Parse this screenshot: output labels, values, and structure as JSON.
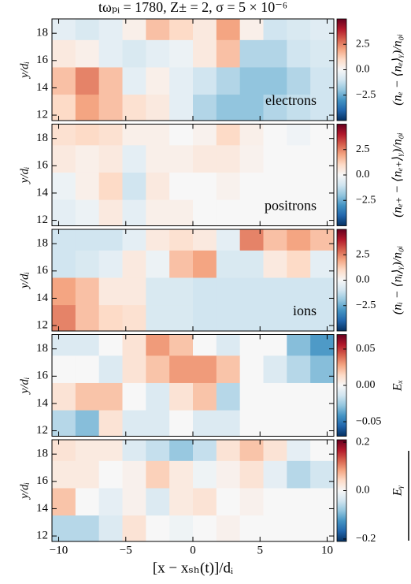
{
  "chart_data": [
    {
      "type": "heatmap",
      "title": "tωₚᵢ = 1780, Z± = 2, σ = 5 × 10⁻⁶",
      "ylabel": "y/dᵢ",
      "annotation": "electrons",
      "colorbar_label": "(nₑ − ⟨nₑ⟩ᵧ)/n₀ᵢ",
      "colormap": [
        "#053061",
        "#2166ac",
        "#4393c3",
        "#92c5de",
        "#d1e5f0",
        "#f7f7f7",
        "#fddbc7",
        "#f4a582",
        "#d6604d",
        "#b2182b",
        "#67001f"
      ],
      "x": [
        -9.625,
        -7.875,
        -6.125,
        -4.375,
        -2.625,
        -0.875,
        0.875,
        2.625,
        4.375,
        6.125,
        7.875,
        9.625
      ],
      "y": [
        18.5,
        16.5,
        14.5,
        12.5
      ],
      "z": [
        [
          -0.5,
          -0.8,
          -0.5,
          0.3,
          1.5,
          1.0,
          0.5,
          2.0,
          0.3,
          -1.0,
          -0.8,
          -0.6
        ],
        [
          0.5,
          0.3,
          -0.5,
          -0.8,
          -0.5,
          -0.3,
          0.5,
          1.5,
          -1.5,
          -1.5,
          -1.0,
          -0.8
        ],
        [
          1.5,
          2.5,
          1.5,
          -0.5,
          0.3,
          -0.5,
          -1.0,
          -1.5,
          -2.0,
          -2.0,
          -1.5,
          -1.0
        ],
        [
          1.0,
          2.0,
          1.5,
          0.8,
          0.5,
          -0.5,
          -1.5,
          -2.0,
          -2.0,
          -1.5,
          -1.2,
          -1.0
        ]
      ],
      "xlim": [
        -10.5,
        10.5
      ],
      "xticks": [
        -10,
        -5,
        0,
        5,
        10
      ],
      "ylim": [
        11.6,
        19.05
      ],
      "yticks": [
        12,
        14,
        16,
        18
      ],
      "clim": [
        -5,
        5
      ],
      "cticks": [
        {
          "value": 2.5,
          "label": "2.5"
        },
        {
          "value": 0,
          "label": "0.0"
        },
        {
          "value": -2.5,
          "label": "−2.5"
        }
      ]
    },
    {
      "type": "heatmap",
      "ylabel": "y/dᵢ",
      "annotation": "positrons",
      "colorbar_label": "(nₑ₊ − ⟨nₑ₊⟩ᵧ)/n₀ᵢ",
      "colormap": [
        "#053061",
        "#2166ac",
        "#4393c3",
        "#92c5de",
        "#d1e5f0",
        "#f7f7f7",
        "#fddbc7",
        "#f4a582",
        "#d6604d",
        "#b2182b",
        "#67001f"
      ],
      "x": [
        -9.625,
        -7.875,
        -6.125,
        -4.375,
        -2.625,
        -0.875,
        0.875,
        2.625,
        4.375,
        6.125,
        7.875,
        9.625
      ],
      "y": [
        18.5,
        16.5,
        14.5,
        12.5
      ],
      "z": [
        [
          0.8,
          1.0,
          0.8,
          0.3,
          0.3,
          0.0,
          0.2,
          1.0,
          0.3,
          0.0,
          -0.2,
          0.0
        ],
        [
          0.5,
          0.3,
          0.5,
          -0.5,
          0.3,
          0.3,
          0.5,
          0.5,
          0.2,
          0.0,
          0.0,
          0.0
        ],
        [
          -0.3,
          0.3,
          1.0,
          -1.0,
          0.5,
          0.0,
          0.0,
          0.2,
          0.0,
          0.0,
          0.0,
          0.0
        ],
        [
          -0.5,
          -0.3,
          0.5,
          -0.5,
          0.3,
          0.3,
          0.0,
          0.0,
          0.0,
          0.0,
          0.0,
          0.0
        ]
      ],
      "xlim": [
        -10.5,
        10.5
      ],
      "xticks": [
        -10,
        -5,
        0,
        5,
        10
      ],
      "ylim": [
        11.6,
        19.05
      ],
      "yticks": [
        12,
        14,
        16,
        18
      ],
      "clim": [
        -5,
        5
      ],
      "cticks": [
        {
          "value": 2.5,
          "label": "2.5"
        },
        {
          "value": 0,
          "label": "0.0"
        },
        {
          "value": -2.5,
          "label": "−2.5"
        }
      ]
    },
    {
      "type": "heatmap",
      "ylabel": "y/dᵢ",
      "annotation": "ions",
      "colorbar_label": "(nᵢ − ⟨nᵢ⟩ᵧ)/n₀ᵢ",
      "colormap": [
        "#053061",
        "#2166ac",
        "#4393c3",
        "#92c5de",
        "#d1e5f0",
        "#f7f7f7",
        "#fddbc7",
        "#f4a582",
        "#d6604d",
        "#b2182b",
        "#67001f"
      ],
      "x": [
        -9.625,
        -7.875,
        -6.125,
        -4.375,
        -2.625,
        -0.875,
        0.875,
        2.625,
        4.375,
        6.125,
        7.875,
        9.625
      ],
      "y": [
        18.5,
        16.5,
        14.5,
        12.5
      ],
      "z": [
        [
          -1.0,
          -1.0,
          -1.0,
          -0.5,
          0.5,
          0.8,
          0.5,
          -0.5,
          2.5,
          1.5,
          2.0,
          1.5
        ],
        [
          -1.0,
          -0.8,
          -0.5,
          0.5,
          -0.3,
          1.5,
          2.0,
          -0.8,
          -0.8,
          0.5,
          1.0,
          -0.5
        ],
        [
          2.0,
          1.5,
          0.5,
          0.5,
          -0.8,
          -0.8,
          -1.0,
          -1.0,
          -1.0,
          -1.0,
          -1.0,
          -1.0
        ],
        [
          2.5,
          1.5,
          1.0,
          0.8,
          -0.8,
          -0.8,
          -1.0,
          -1.0,
          -1.0,
          -1.0,
          -1.0,
          -1.0
        ]
      ],
      "xlim": [
        -10.5,
        10.5
      ],
      "xticks": [
        -10,
        -5,
        0,
        5,
        10
      ],
      "ylim": [
        11.6,
        19.05
      ],
      "yticks": [
        12,
        14,
        16,
        18
      ],
      "clim": [
        -5,
        5
      ],
      "cticks": [
        {
          "value": 2.5,
          "label": "2.5"
        },
        {
          "value": 0,
          "label": "0.0"
        },
        {
          "value": -2.5,
          "label": "−2.5"
        }
      ]
    },
    {
      "type": "heatmap",
      "ylabel": "y/dᵢ",
      "colorbar_label": "Eₓ",
      "colormap": [
        "#053061",
        "#2166ac",
        "#4393c3",
        "#92c5de",
        "#d1e5f0",
        "#f7f7f7",
        "#fddbc7",
        "#f4a582",
        "#d6604d",
        "#b2182b",
        "#67001f"
      ],
      "x": [
        -9.625,
        -7.875,
        -6.125,
        -4.375,
        -2.625,
        -0.875,
        0.875,
        2.625,
        4.375,
        6.125,
        7.875,
        9.625
      ],
      "y": [
        18.5,
        16.5,
        14.5,
        12.5
      ],
      "z": [
        [
          -0.01,
          -0.01,
          0.0,
          0.01,
          0.03,
          0.02,
          0.0,
          -0.01,
          0.0,
          0.0,
          -0.03,
          -0.04
        ],
        [
          0.0,
          0.0,
          -0.01,
          0.01,
          0.02,
          0.03,
          0.03,
          0.02,
          0.0,
          -0.01,
          -0.02,
          -0.03
        ],
        [
          0.01,
          0.02,
          0.02,
          0.0,
          -0.01,
          0.01,
          0.02,
          -0.02,
          0.0,
          0.0,
          0.0,
          0.0
        ],
        [
          -0.02,
          -0.03,
          0.01,
          -0.01,
          -0.01,
          0.0,
          -0.01,
          -0.01,
          0.0,
          0.0,
          0.0,
          0.0
        ]
      ],
      "xlim": [
        -10.5,
        10.5
      ],
      "xticks": [
        -10,
        -5,
        0,
        5,
        10
      ],
      "ylim": [
        11.6,
        19.05
      ],
      "yticks": [
        12,
        14,
        16,
        18
      ],
      "clim": [
        -0.07,
        0.07
      ],
      "cticks": [
        0.05,
        {
          "value": 0,
          "label": "0.00"
        },
        {
          "value": -0.05,
          "label": "−0.05"
        }
      ]
    },
    {
      "type": "heatmap",
      "ylabel": "y/dᵢ",
      "xlabel": "[x − xₛₕ(t)]/dᵢ",
      "colorbar_label": "Eᵧ",
      "colormap": [
        "#053061",
        "#2166ac",
        "#4393c3",
        "#92c5de",
        "#d1e5f0",
        "#f7f7f7",
        "#fddbc7",
        "#f4a582",
        "#d6604d",
        "#b2182b",
        "#67001f"
      ],
      "x": [
        -9.625,
        -7.875,
        -6.125,
        -4.375,
        -2.625,
        -0.875,
        0.875,
        2.625,
        4.375,
        6.125,
        7.875,
        9.625
      ],
      "y": [
        18.5,
        16.5,
        14.5,
        12.5
      ],
      "z": [
        [
          0.03,
          0.02,
          0.02,
          -0.03,
          -0.05,
          -0.08,
          -0.05,
          0.03,
          0.06,
          0.03,
          -0.02,
          0.0
        ],
        [
          0.02,
          0.02,
          0.0,
          0.01,
          0.05,
          0.02,
          -0.01,
          0.01,
          0.03,
          -0.02,
          -0.06,
          -0.04
        ],
        [
          0.06,
          0.0,
          -0.02,
          0.01,
          -0.03,
          0.02,
          0.03,
          0.0,
          0.01,
          0.0,
          0.0,
          0.0
        ],
        [
          -0.06,
          -0.06,
          -0.03,
          0.03,
          0.0,
          -0.01,
          0.0,
          0.01,
          0.0,
          0.0,
          0.0,
          0.0
        ]
      ],
      "xlim": [
        -10.5,
        10.5
      ],
      "xticks": [
        {
          "value": -10,
          "label": "−10"
        },
        {
          "value": -5,
          "label": "−5"
        },
        0,
        5,
        10
      ],
      "ylim": [
        11.6,
        19.05
      ],
      "yticks": [
        12,
        14,
        16,
        18
      ],
      "clim": [
        -0.21,
        0.21
      ],
      "cticks": [
        0.2,
        {
          "value": 0,
          "label": "0.0"
        },
        {
          "value": -0.2,
          "label": "−0.2"
        }
      ]
    }
  ]
}
